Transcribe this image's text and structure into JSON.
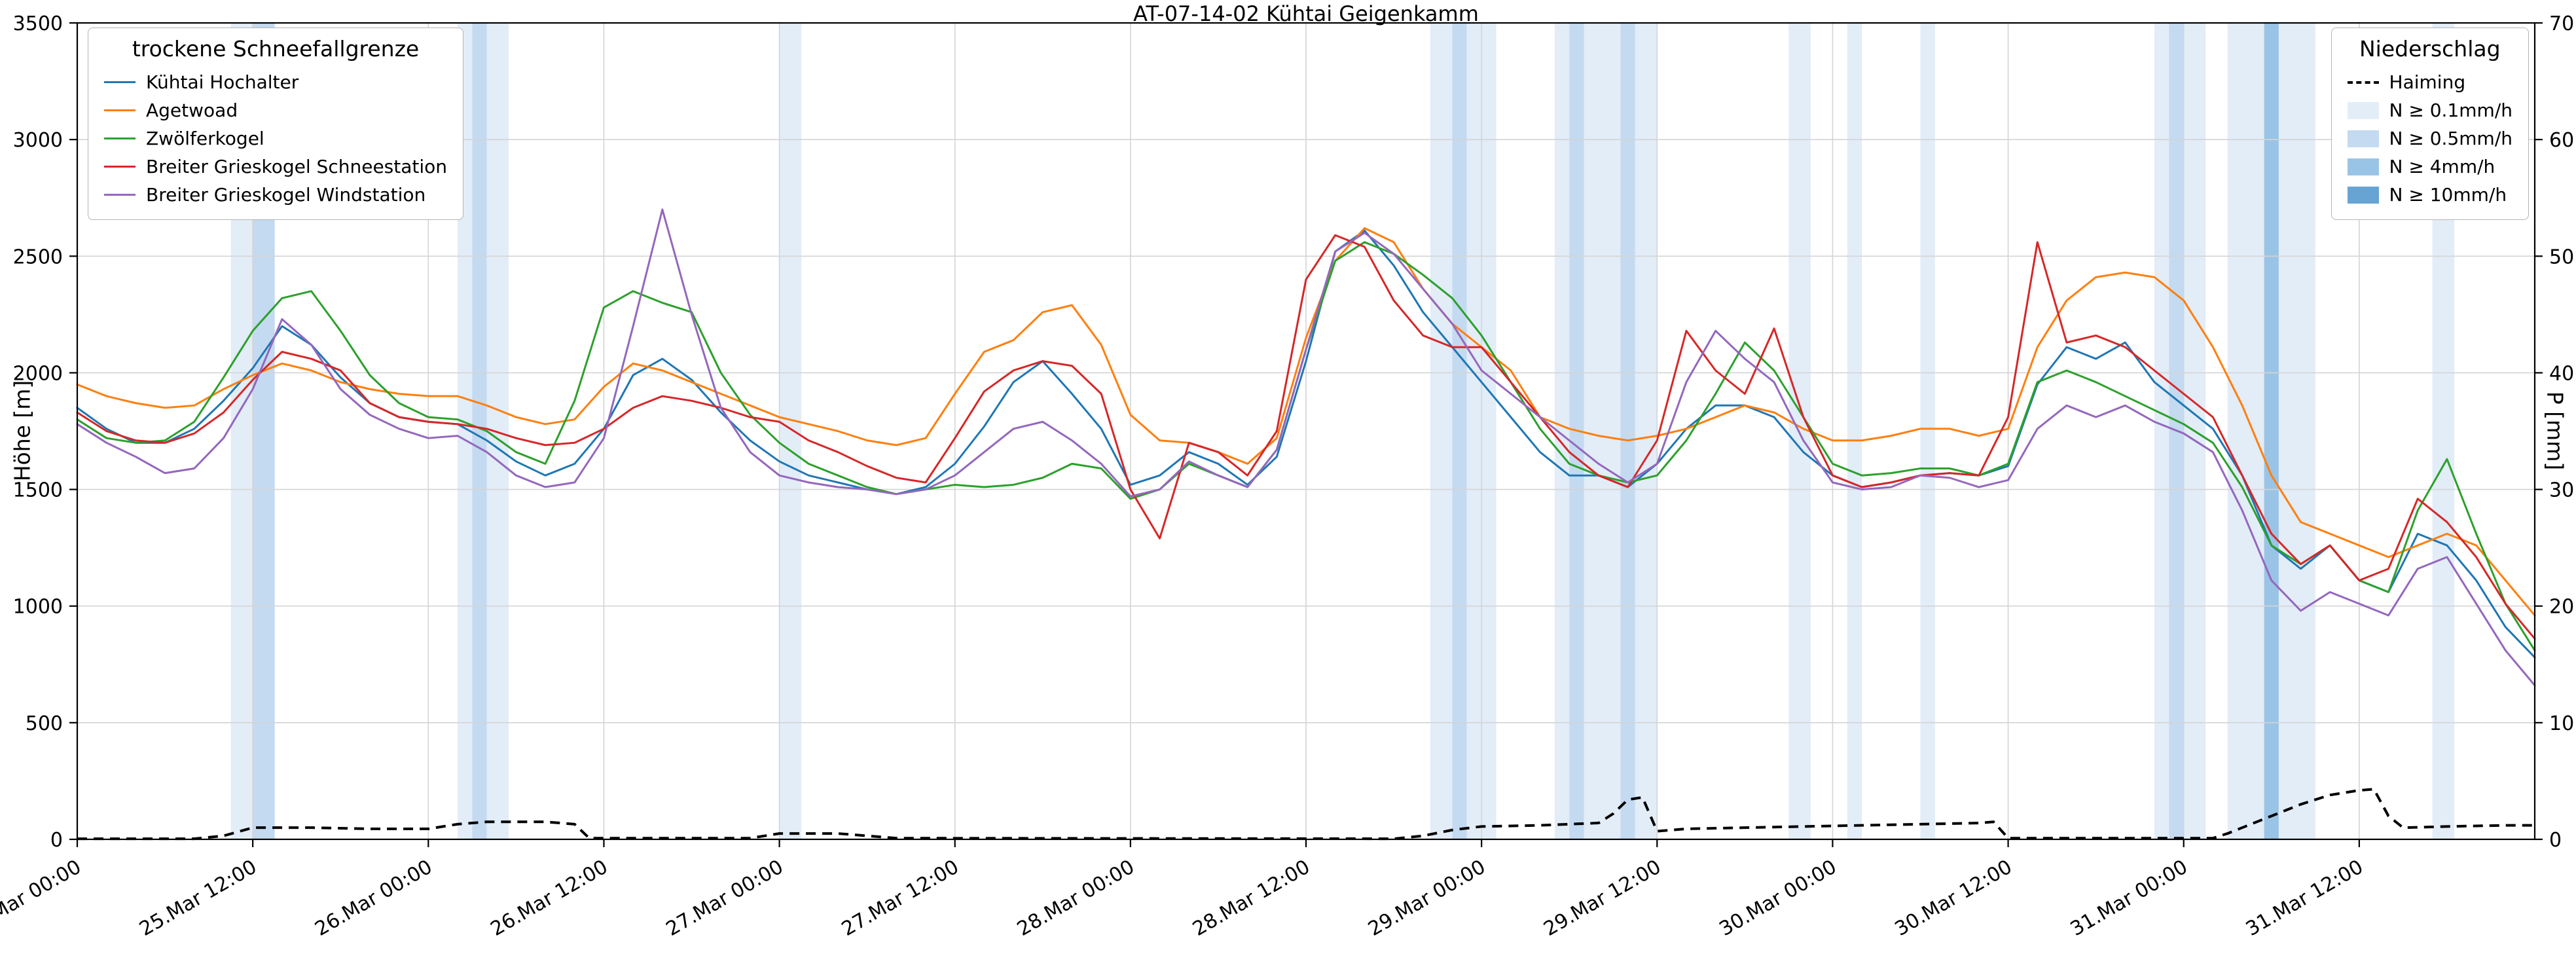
{
  "figure": {
    "title": "AT-07-14-02 Kühtai Geigenkamm",
    "ylabel_left": "Höhe [m]",
    "ylabel_right": "P [mm]"
  },
  "legend_stations": {
    "title": "trockene Schneefallgrenze"
  },
  "legend_precip": {
    "title": "Niederschlag",
    "line_label": "Haiming",
    "fill_items": [
      {
        "label": "N ≥ 0.1mm/h",
        "level": "0.1"
      },
      {
        "label": "N ≥ 0.5mm/h",
        "level": "0.5"
      },
      {
        "label": "N ≥ 4mm/h",
        "level": "4"
      },
      {
        "label": "N ≥ 10mm/h",
        "level": "10"
      }
    ]
  },
  "chart_data": {
    "type": "line",
    "title": "AT-07-14-02 Kühtai Geigenkamm",
    "x_unit": "hours since 25.Mar 00:00",
    "x_range": [
      0,
      168
    ],
    "ylabel_left": "Höhe [m]",
    "ylabel_right": "P [mm]",
    "ylim_left": [
      0,
      3500
    ],
    "ylim_right": [
      0,
      70
    ],
    "yticks_left": [
      0,
      500,
      1000,
      1500,
      2000,
      2500,
      3000,
      3500
    ],
    "yticks_right": [
      0,
      10,
      20,
      30,
      40,
      50,
      60,
      70
    ],
    "grid": true,
    "legend_positions": {
      "stations": "upper left",
      "precip": "upper right"
    },
    "xticks": [
      {
        "t": 0,
        "label": "25.Mar 00:00"
      },
      {
        "t": 12,
        "label": "25.Mar 12:00"
      },
      {
        "t": 24,
        "label": "26.Mar 00:00"
      },
      {
        "t": 36,
        "label": "26.Mar 12:00"
      },
      {
        "t": 48,
        "label": "27.Mar 00:00"
      },
      {
        "t": 60,
        "label": "27.Mar 12:00"
      },
      {
        "t": 72,
        "label": "28.Mar 00:00"
      },
      {
        "t": 84,
        "label": "28.Mar 12:00"
      },
      {
        "t": 96,
        "label": "29.Mar 00:00"
      },
      {
        "t": 108,
        "label": "29.Mar 12:00"
      },
      {
        "t": 120,
        "label": "30.Mar 00:00"
      },
      {
        "t": 132,
        "label": "30.Mar 12:00"
      },
      {
        "t": 144,
        "label": "31.Mar 00:00"
      },
      {
        "t": 156,
        "label": "31.Mar 12:00"
      }
    ],
    "x": [
      0,
      2,
      4,
      6,
      8,
      10,
      12,
      14,
      16,
      18,
      20,
      22,
      24,
      26,
      28,
      30,
      32,
      34,
      36,
      38,
      40,
      42,
      44,
      46,
      48,
      50,
      52,
      54,
      56,
      58,
      60,
      62,
      64,
      66,
      68,
      70,
      72,
      74,
      76,
      78,
      80,
      82,
      84,
      86,
      88,
      90,
      92,
      94,
      96,
      98,
      100,
      102,
      104,
      106,
      108,
      110,
      112,
      114,
      116,
      118,
      120,
      122,
      124,
      126,
      128,
      130,
      132,
      134,
      136,
      138,
      140,
      142,
      144,
      146,
      148,
      150,
      152,
      154,
      156,
      158,
      160,
      162,
      164,
      166,
      168
    ],
    "series": [
      {
        "id": "kuehtai-hochalter",
        "label": "Kühtai Hochalter",
        "color": "#1f77b4",
        "values": [
          1850,
          1760,
          1700,
          1700,
          1760,
          1880,
          2020,
          2200,
          2120,
          1980,
          1870,
          1810,
          1790,
          1780,
          1710,
          1620,
          1560,
          1610,
          1760,
          1990,
          2060,
          1970,
          1830,
          1710,
          1620,
          1560,
          1530,
          1500,
          1480,
          1510,
          1610,
          1770,
          1960,
          2050,
          1910,
          1760,
          1520,
          1560,
          1660,
          1610,
          1520,
          1640,
          2050,
          2520,
          2610,
          2460,
          2260,
          2110,
          1960,
          1810,
          1660,
          1560,
          1560,
          1510,
          1610,
          1760,
          1860,
          1860,
          1810,
          1660,
          1560,
          1510,
          1530,
          1560,
          1570,
          1560,
          1600,
          1950,
          2110,
          2060,
          2130,
          1960,
          1860,
          1760,
          1560,
          1260,
          1160,
          1260,
          1110,
          1060,
          1310,
          1260,
          1110,
          910,
          780
        ]
      },
      {
        "id": "agetwoad",
        "label": "Agetwoad",
        "color": "#ff7f0e",
        "values": [
          1950,
          1900,
          1870,
          1850,
          1860,
          1930,
          1990,
          2040,
          2010,
          1960,
          1930,
          1910,
          1900,
          1900,
          1860,
          1810,
          1780,
          1800,
          1940,
          2040,
          2010,
          1960,
          1910,
          1860,
          1810,
          1780,
          1750,
          1710,
          1690,
          1720,
          1910,
          2090,
          2140,
          2260,
          2290,
          2120,
          1820,
          1710,
          1700,
          1660,
          1610,
          1720,
          2150,
          2480,
          2620,
          2560,
          2360,
          2210,
          2110,
          2010,
          1810,
          1760,
          1730,
          1710,
          1730,
          1760,
          1810,
          1860,
          1830,
          1760,
          1710,
          1710,
          1730,
          1760,
          1760,
          1730,
          1760,
          2110,
          2310,
          2410,
          2430,
          2410,
          2310,
          2110,
          1860,
          1560,
          1360,
          1310,
          1260,
          1210,
          1260,
          1310,
          1260,
          1110,
          960
        ]
      },
      {
        "id": "zwoelferkogel",
        "label": "Zwölferkogel",
        "color": "#2ca02c",
        "values": [
          1800,
          1720,
          1700,
          1710,
          1790,
          1980,
          2180,
          2320,
          2350,
          2180,
          1990,
          1870,
          1810,
          1800,
          1750,
          1660,
          1610,
          1880,
          2280,
          2350,
          2300,
          2260,
          2000,
          1820,
          1700,
          1610,
          1560,
          1510,
          1480,
          1500,
          1520,
          1510,
          1520,
          1550,
          1610,
          1590,
          1460,
          1500,
          1610,
          1560,
          1510,
          1670,
          2100,
          2480,
          2560,
          2510,
          2420,
          2320,
          2160,
          1960,
          1760,
          1610,
          1560,
          1530,
          1560,
          1710,
          1910,
          2130,
          2010,
          1810,
          1610,
          1560,
          1570,
          1590,
          1590,
          1560,
          1610,
          1960,
          2010,
          1960,
          1900,
          1840,
          1780,
          1700,
          1510,
          1260,
          1180,
          1260,
          1110,
          1060,
          1410,
          1630,
          1310,
          1010,
          810
        ]
      },
      {
        "id": "breiter-grieskogel-schneestation",
        "label": "Breiter Grieskogel Schneestation",
        "color": "#d62728",
        "values": [
          1830,
          1750,
          1710,
          1700,
          1740,
          1830,
          1970,
          2090,
          2060,
          2010,
          1870,
          1810,
          1790,
          1780,
          1760,
          1720,
          1690,
          1700,
          1760,
          1850,
          1900,
          1880,
          1850,
          1810,
          1790,
          1710,
          1660,
          1600,
          1550,
          1530,
          1720,
          1920,
          2010,
          2050,
          2030,
          1910,
          1500,
          1290,
          1700,
          1660,
          1560,
          1750,
          2400,
          2590,
          2540,
          2310,
          2160,
          2110,
          2110,
          1960,
          1810,
          1660,
          1560,
          1510,
          1710,
          2180,
          2010,
          1910,
          2190,
          1810,
          1560,
          1510,
          1530,
          1560,
          1570,
          1560,
          1810,
          2560,
          2130,
          2160,
          2110,
          2010,
          1910,
          1810,
          1560,
          1310,
          1180,
          1260,
          1110,
          1160,
          1460,
          1360,
          1210,
          1010,
          860
        ]
      },
      {
        "id": "breiter-grieskogel-windstation",
        "label": "Breiter Grieskogel Windstation",
        "color": "#9467bd",
        "values": [
          1780,
          1700,
          1640,
          1570,
          1590,
          1720,
          1930,
          2230,
          2120,
          1930,
          1820,
          1760,
          1720,
          1730,
          1660,
          1560,
          1510,
          1530,
          1720,
          2200,
          2700,
          2250,
          1850,
          1660,
          1560,
          1530,
          1510,
          1500,
          1480,
          1500,
          1560,
          1660,
          1760,
          1790,
          1710,
          1610,
          1470,
          1500,
          1620,
          1560,
          1510,
          1670,
          2100,
          2520,
          2600,
          2510,
          2360,
          2210,
          2010,
          1910,
          1810,
          1710,
          1610,
          1530,
          1610,
          1960,
          2180,
          2060,
          1960,
          1710,
          1530,
          1500,
          1510,
          1560,
          1550,
          1510,
          1540,
          1760,
          1860,
          1810,
          1860,
          1790,
          1740,
          1660,
          1410,
          1110,
          980,
          1060,
          1010,
          960,
          1160,
          1210,
          1010,
          810,
          660
        ]
      }
    ],
    "precip_line": {
      "id": "haiming",
      "label": "Haiming",
      "color": "#000000",
      "dashed": true,
      "axis": "right",
      "points": [
        [
          0,
          0.05
        ],
        [
          8,
          0.05
        ],
        [
          10,
          0.3
        ],
        [
          12,
          1.0
        ],
        [
          16,
          1.0
        ],
        [
          20,
          0.9
        ],
        [
          24,
          0.9
        ],
        [
          26,
          1.3
        ],
        [
          28,
          1.5
        ],
        [
          32,
          1.5
        ],
        [
          34,
          1.3
        ],
        [
          35,
          0.1
        ],
        [
          46,
          0.1
        ],
        [
          48,
          0.5
        ],
        [
          52,
          0.5
        ],
        [
          54,
          0.3
        ],
        [
          56,
          0.1
        ],
        [
          90,
          0.05
        ],
        [
          92,
          0.3
        ],
        [
          94,
          0.8
        ],
        [
          96,
          1.1
        ],
        [
          100,
          1.2
        ],
        [
          104,
          1.4
        ],
        [
          105,
          2.2
        ],
        [
          106,
          3.4
        ],
        [
          107,
          3.6
        ],
        [
          108,
          0.7
        ],
        [
          110,
          0.9
        ],
        [
          114,
          1.0
        ],
        [
          118,
          1.1
        ],
        [
          122,
          1.2
        ],
        [
          126,
          1.3
        ],
        [
          130,
          1.4
        ],
        [
          131,
          1.5
        ],
        [
          132,
          0.1
        ],
        [
          146,
          0.1
        ],
        [
          147,
          0.5
        ],
        [
          148,
          1.0
        ],
        [
          150,
          2.0
        ],
        [
          152,
          3.0
        ],
        [
          154,
          3.8
        ],
        [
          156,
          4.2
        ],
        [
          157,
          4.3
        ],
        [
          158,
          2.0
        ],
        [
          159,
          1.0
        ],
        [
          162,
          1.1
        ],
        [
          166,
          1.2
        ],
        [
          168,
          1.2
        ]
      ]
    },
    "band_colors": {
      "0.1": "#e2edf8",
      "0.5": "#c4daf0",
      "4": "#9ac4e5",
      "10": "#67a4d4"
    },
    "precip_bands": [
      {
        "from": 10.5,
        "to": 12,
        "level": "0.1"
      },
      {
        "from": 12,
        "to": 13.5,
        "level": "0.5"
      },
      {
        "from": 26,
        "to": 27,
        "level": "0.1"
      },
      {
        "from": 27,
        "to": 28,
        "level": "0.5"
      },
      {
        "from": 28,
        "to": 29.5,
        "level": "0.1"
      },
      {
        "from": 48,
        "to": 49.5,
        "level": "0.1"
      },
      {
        "from": 92.5,
        "to": 94,
        "level": "0.1"
      },
      {
        "from": 94,
        "to": 95,
        "level": "0.5"
      },
      {
        "from": 95,
        "to": 97,
        "level": "0.1"
      },
      {
        "from": 101,
        "to": 102,
        "level": "0.1"
      },
      {
        "from": 102,
        "to": 103,
        "level": "0.5"
      },
      {
        "from": 103,
        "to": 105.5,
        "level": "0.1"
      },
      {
        "from": 105.5,
        "to": 106.5,
        "level": "0.5"
      },
      {
        "from": 106.5,
        "to": 108,
        "level": "0.1"
      },
      {
        "from": 117,
        "to": 118.5,
        "level": "0.1"
      },
      {
        "from": 121,
        "to": 122,
        "level": "0.1"
      },
      {
        "from": 126,
        "to": 127,
        "level": "0.1"
      },
      {
        "from": 142,
        "to": 143,
        "level": "0.1"
      },
      {
        "from": 143,
        "to": 144,
        "level": "0.5"
      },
      {
        "from": 144,
        "to": 145.5,
        "level": "0.1"
      },
      {
        "from": 147,
        "to": 149.5,
        "level": "0.1"
      },
      {
        "from": 149.5,
        "to": 150.5,
        "level": "4"
      },
      {
        "from": 150.5,
        "to": 153,
        "level": "0.1"
      },
      {
        "from": 161,
        "to": 162.5,
        "level": "0.1"
      }
    ]
  }
}
